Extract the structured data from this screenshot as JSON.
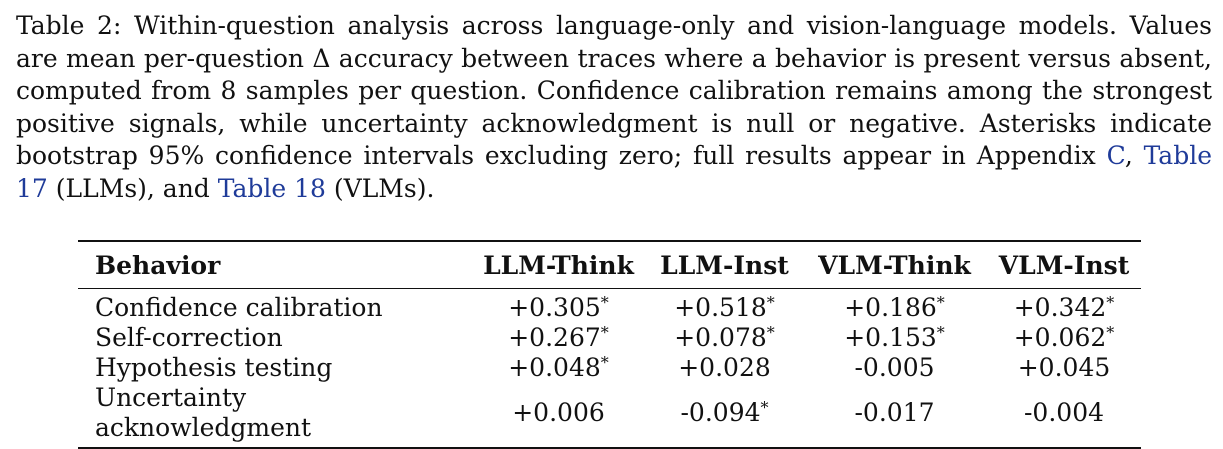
{
  "caption": {
    "text_1": "Table 2: Within-question analysis across language-only and vision-language models. Values are mean per-question Δ accuracy between traces where a behavior is present versus absent, computed from 8 samples per question. Confidence calibration remains among the strongest positive signals, while uncertainty acknowledgment is null or negative. Asterisks indicate bootstrap 95% confidence intervals excluding zero; full results appear in Appendix ",
    "ref_appendix": "C",
    "text_2": ", ",
    "ref_table17": "Table 17",
    "text_3": " (LLMs), and ",
    "ref_table18": "Table 18",
    "text_4": " (VLMs)."
  },
  "table": {
    "headers": [
      "Behavior",
      "LLM-Think",
      "LLM-Inst",
      "VLM-Think",
      "VLM-Inst"
    ],
    "rows": [
      {
        "behavior": "Confidence calibration",
        "cells": [
          {
            "value": "+0.305",
            "star": "*"
          },
          {
            "value": "+0.518",
            "star": "*"
          },
          {
            "value": "+0.186",
            "star": "*"
          },
          {
            "value": "+0.342",
            "star": "*"
          }
        ]
      },
      {
        "behavior": "Self-correction",
        "cells": [
          {
            "value": "+0.267",
            "star": "*"
          },
          {
            "value": "+0.078",
            "star": "*"
          },
          {
            "value": "+0.153",
            "star": "*"
          },
          {
            "value": "+0.062",
            "star": "*"
          }
        ]
      },
      {
        "behavior": "Hypothesis testing",
        "cells": [
          {
            "value": "+0.048",
            "star": "*"
          },
          {
            "value": "+0.028",
            "star": ""
          },
          {
            "value": "-0.005",
            "star": ""
          },
          {
            "value": "+0.045",
            "star": ""
          }
        ]
      },
      {
        "behavior": "Uncertainty acknowledgment",
        "cells": [
          {
            "value": "+0.006",
            "star": ""
          },
          {
            "value": "-0.094",
            "star": "*"
          },
          {
            "value": "-0.017",
            "star": ""
          },
          {
            "value": "-0.004",
            "star": ""
          }
        ]
      }
    ]
  }
}
